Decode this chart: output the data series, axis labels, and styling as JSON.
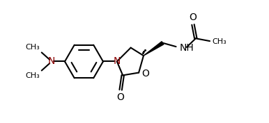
{
  "bg_color": "#ffffff",
  "line_color": "#000000",
  "line_width": 1.5,
  "font_size": 8.5,
  "figsize": [
    3.86,
    1.77
  ],
  "dpi": 100,
  "xlim": [
    0,
    10
  ],
  "ylim": [
    0,
    4.6
  ],
  "n_color": "#8B0000",
  "o_color": "#000000"
}
